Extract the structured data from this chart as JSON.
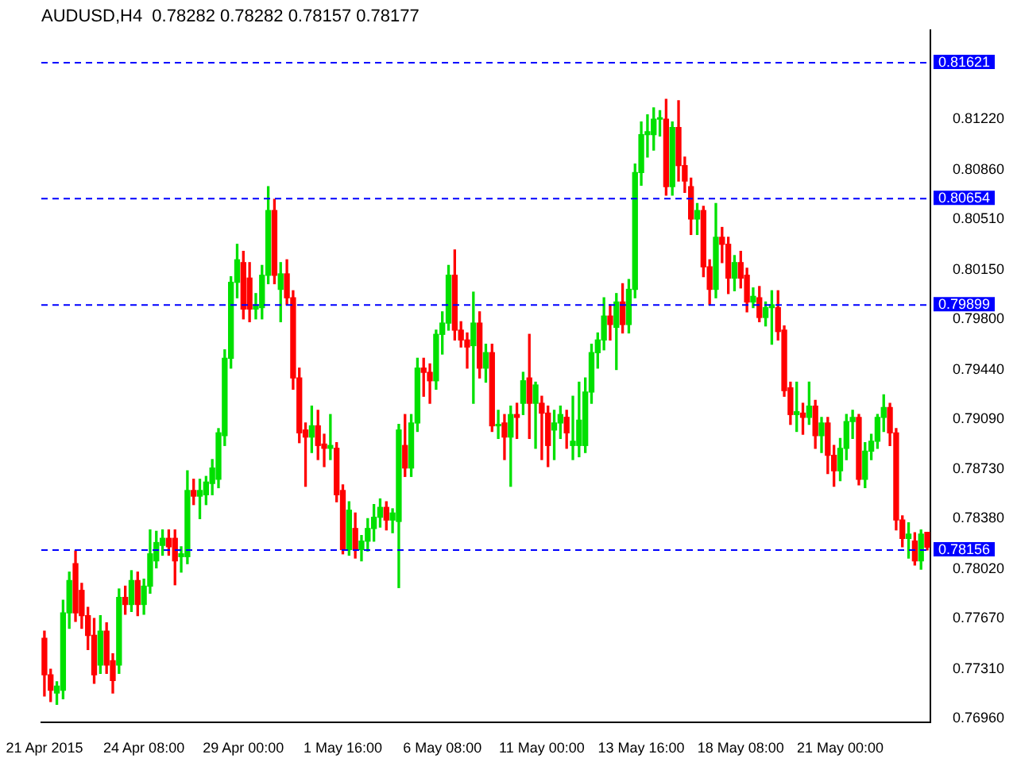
{
  "chart_data": {
    "type": "candlestick",
    "title": "AUDUSD,H4  0.78282 0.78282 0.78157 0.78177",
    "categories": [
      "21 Apr 2015",
      null,
      null,
      null,
      null,
      null,
      null,
      null,
      null,
      null,
      null,
      null,
      null,
      null,
      null,
      null,
      "24 Apr 08:00",
      null,
      null,
      null,
      null,
      null,
      null,
      null,
      null,
      null,
      null,
      null,
      null,
      null,
      null,
      null,
      "29 Apr 00:00",
      null,
      null,
      null,
      null,
      null,
      null,
      null,
      null,
      null,
      null,
      null,
      null,
      null,
      null,
      null,
      "1 May 16:00",
      null,
      null,
      null,
      null,
      null,
      null,
      null,
      null,
      null,
      null,
      null,
      null,
      null,
      null,
      null,
      "6 May 08:00",
      null,
      null,
      null,
      null,
      null,
      null,
      null,
      null,
      null,
      null,
      null,
      null,
      null,
      null,
      null,
      "11 May 00:00",
      null,
      null,
      null,
      null,
      null,
      null,
      null,
      null,
      null,
      null,
      null,
      null,
      null,
      null,
      null,
      "13 May 16:00",
      null,
      null,
      null,
      null,
      null,
      null,
      null,
      null,
      null,
      null,
      null,
      null,
      null,
      null,
      null,
      "18 May 08:00",
      null,
      null,
      null,
      null,
      null,
      null,
      null,
      null,
      null,
      null,
      null,
      null,
      null,
      null,
      null,
      "21 May 00:00",
      null,
      null,
      null,
      null,
      null,
      null,
      null,
      null,
      null,
      null,
      null,
      null,
      null,
      null
    ],
    "ohlc": [
      [
        0.7753,
        0.7758,
        0.7712,
        0.7727
      ],
      [
        0.7727,
        0.7731,
        0.7708,
        0.7716
      ],
      [
        0.7714,
        0.7722,
        0.7706,
        0.7719
      ],
      [
        0.7716,
        0.778,
        0.771,
        0.7771
      ],
      [
        0.7771,
        0.78,
        0.776,
        0.7794
      ],
      [
        0.7806,
        0.7815,
        0.7765,
        0.7771
      ],
      [
        0.7787,
        0.7792,
        0.776,
        0.7769
      ],
      [
        0.7769,
        0.7775,
        0.7745,
        0.7755
      ],
      [
        0.7755,
        0.7767,
        0.7721,
        0.7727
      ],
      [
        0.7734,
        0.7769,
        0.7728,
        0.7758
      ],
      [
        0.7758,
        0.7764,
        0.7728,
        0.7734
      ],
      [
        0.7737,
        0.7742,
        0.7714,
        0.7723
      ],
      [
        0.7734,
        0.7788,
        0.7728,
        0.7782
      ],
      [
        0.7782,
        0.779,
        0.777,
        0.7777
      ],
      [
        0.7777,
        0.7801,
        0.7772,
        0.7794
      ],
      [
        0.7794,
        0.78,
        0.7769,
        0.7777
      ],
      [
        0.7777,
        0.7795,
        0.777,
        0.779
      ],
      [
        0.779,
        0.783,
        0.7785,
        0.7813
      ],
      [
        0.7808,
        0.7829,
        0.7803,
        0.7821
      ],
      [
        0.7819,
        0.783,
        0.7812,
        0.7824
      ],
      [
        0.7824,
        0.783,
        0.7812,
        0.7818
      ],
      [
        0.7824,
        0.783,
        0.7791,
        0.7808
      ],
      [
        0.7811,
        0.7818,
        0.78,
        0.7813
      ],
      [
        0.7811,
        0.7872,
        0.7806,
        0.7858
      ],
      [
        0.7858,
        0.7866,
        0.7848,
        0.7854
      ],
      [
        0.7854,
        0.7866,
        0.7838,
        0.7858
      ],
      [
        0.7855,
        0.7868,
        0.7848,
        0.7864
      ],
      [
        0.7863,
        0.788,
        0.7855,
        0.7874
      ],
      [
        0.7866,
        0.7902,
        0.786,
        0.7899
      ],
      [
        0.7897,
        0.7958,
        0.789,
        0.7952
      ],
      [
        0.7952,
        0.801,
        0.7945,
        0.8006
      ],
      [
        0.8006,
        0.8033,
        0.7995,
        0.8022
      ],
      [
        0.802,
        0.8028,
        0.798,
        0.7987
      ],
      [
        0.8009,
        0.802,
        0.7978,
        0.7987
      ],
      [
        0.7987,
        0.7998,
        0.798,
        0.7989
      ],
      [
        0.7988,
        0.8018,
        0.798,
        0.8011
      ],
      [
        0.8011,
        0.8074,
        0.8005,
        0.8057
      ],
      [
        0.8057,
        0.8065,
        0.8005,
        0.8011
      ],
      [
        0.8001,
        0.802,
        0.7978,
        0.8012
      ],
      [
        0.8012,
        0.8022,
        0.799,
        0.7995
      ],
      [
        0.7995,
        0.8,
        0.793,
        0.7938
      ],
      [
        0.7938,
        0.7945,
        0.7892,
        0.7899
      ],
      [
        0.7901,
        0.7906,
        0.7861,
        0.7896
      ],
      [
        0.7896,
        0.7918,
        0.7885,
        0.7904
      ],
      [
        0.7904,
        0.7915,
        0.788,
        0.789
      ],
      [
        0.7891,
        0.7898,
        0.7875,
        0.7888
      ],
      [
        0.7888,
        0.7912,
        0.788,
        0.789
      ],
      [
        0.7888,
        0.7892,
        0.785,
        0.7855
      ],
      [
        0.7858,
        0.7862,
        0.7813,
        0.7816
      ],
      [
        0.7816,
        0.785,
        0.7812,
        0.7844
      ],
      [
        0.7831,
        0.7842,
        0.781,
        0.7816
      ],
      [
        0.7816,
        0.7826,
        0.7808,
        0.7822
      ],
      [
        0.7822,
        0.7838,
        0.7815,
        0.7831
      ],
      [
        0.7831,
        0.7848,
        0.7822,
        0.7839
      ],
      [
        0.7839,
        0.7852,
        0.7832,
        0.7846
      ],
      [
        0.7846,
        0.785,
        0.783,
        0.7837
      ],
      [
        0.7837,
        0.7845,
        0.7828,
        0.7842
      ],
      [
        0.7836,
        0.7905,
        0.7789,
        0.7901
      ],
      [
        0.789,
        0.7912,
        0.7868,
        0.7874
      ],
      [
        0.7874,
        0.7912,
        0.7868,
        0.7906
      ],
      [
        0.7906,
        0.7952,
        0.79,
        0.7945
      ],
      [
        0.7945,
        0.7952,
        0.7925,
        0.7942
      ],
      [
        0.7942,
        0.7948,
        0.792,
        0.7936
      ],
      [
        0.7936,
        0.7972,
        0.793,
        0.7969
      ],
      [
        0.7969,
        0.7985,
        0.7955,
        0.7977
      ],
      [
        0.7977,
        0.8018,
        0.7972,
        0.8011
      ],
      [
        0.8011,
        0.8029,
        0.7965,
        0.7972
      ],
      [
        0.7972,
        0.7978,
        0.796,
        0.7965
      ],
      [
        0.7965,
        0.797,
        0.7945,
        0.796
      ],
      [
        0.7961,
        0.7999,
        0.792,
        0.7977
      ],
      [
        0.7977,
        0.7985,
        0.7938,
        0.7945
      ],
      [
        0.7945,
        0.7962,
        0.7935,
        0.7956
      ],
      [
        0.7956,
        0.7962,
        0.79,
        0.7904
      ],
      [
        0.7904,
        0.7915,
        0.7895,
        0.7905
      ],
      [
        0.7906,
        0.7912,
        0.788,
        0.7896
      ],
      [
        0.7896,
        0.7918,
        0.7861,
        0.7912
      ],
      [
        0.7912,
        0.792,
        0.7895,
        0.791
      ],
      [
        0.792,
        0.7942,
        0.7912,
        0.7936
      ],
      [
        0.7938,
        0.7969,
        0.7895,
        0.792
      ],
      [
        0.792,
        0.7935,
        0.7888,
        0.7933
      ],
      [
        0.792,
        0.7925,
        0.788,
        0.7913
      ],
      [
        0.7913,
        0.7918,
        0.7875,
        0.789
      ],
      [
        0.7901,
        0.7915,
        0.788,
        0.7906
      ],
      [
        0.7906,
        0.7918,
        0.7895,
        0.7912
      ],
      [
        0.791,
        0.7915,
        0.7888,
        0.7899
      ],
      [
        0.789,
        0.7925,
        0.788,
        0.7893
      ],
      [
        0.789,
        0.7935,
        0.7882,
        0.7908
      ],
      [
        0.789,
        0.7938,
        0.7885,
        0.7928
      ],
      [
        0.7928,
        0.7962,
        0.792,
        0.7956
      ],
      [
        0.7956,
        0.797,
        0.7945,
        0.7965
      ],
      [
        0.7965,
        0.7995,
        0.7958,
        0.7982
      ],
      [
        0.7982,
        0.799,
        0.7965,
        0.7976
      ],
      [
        0.7974,
        0.7998,
        0.7944,
        0.7992
      ],
      [
        0.7992,
        0.8005,
        0.797,
        0.7976
      ],
      [
        0.7976,
        0.8008,
        0.797,
        0.8001
      ],
      [
        0.8001,
        0.809,
        0.7995,
        0.8084
      ],
      [
        0.8084,
        0.812,
        0.8075,
        0.8111
      ],
      [
        0.8111,
        0.8125,
        0.8095,
        0.8113
      ],
      [
        0.8111,
        0.813,
        0.81,
        0.8122
      ],
      [
        0.8122,
        0.8128,
        0.811,
        0.8123
      ],
      [
        0.8122,
        0.8136,
        0.8068,
        0.8074
      ],
      [
        0.8074,
        0.812,
        0.8068,
        0.8116
      ],
      [
        0.8116,
        0.8135,
        0.8078,
        0.8089
      ],
      [
        0.8089,
        0.8095,
        0.807,
        0.8078
      ],
      [
        0.8074,
        0.808,
        0.804,
        0.8051
      ],
      [
        0.8051,
        0.8062,
        0.804,
        0.8057
      ],
      [
        0.8057,
        0.806,
        0.801,
        0.8017
      ],
      [
        0.8017,
        0.8022,
        0.799,
        0.8001
      ],
      [
        0.8001,
        0.8062,
        0.7995,
        0.8038
      ],
      [
        0.8038,
        0.8045,
        0.802,
        0.8033
      ],
      [
        0.8033,
        0.8038,
        0.7998,
        0.8009
      ],
      [
        0.8009,
        0.8025,
        0.8,
        0.802
      ],
      [
        0.802,
        0.8028,
        0.8002,
        0.8009
      ],
      [
        0.8011,
        0.8016,
        0.7985,
        0.7992
      ],
      [
        0.7992,
        0.8002,
        0.7988,
        0.7996
      ],
      [
        0.7995,
        0.8003,
        0.7978,
        0.7981
      ],
      [
        0.7981,
        0.7992,
        0.7975,
        0.7988
      ],
      [
        0.7988,
        0.8,
        0.7962,
        0.799
      ],
      [
        0.7988,
        0.8,
        0.7965,
        0.7971
      ],
      [
        0.7972,
        0.7975,
        0.7925,
        0.7929
      ],
      [
        0.7931,
        0.7935,
        0.7905,
        0.7912
      ],
      [
        0.7912,
        0.7935,
        0.79,
        0.7914
      ],
      [
        0.7913,
        0.792,
        0.7898,
        0.791
      ],
      [
        0.791,
        0.7935,
        0.7905,
        0.7918
      ],
      [
        0.7918,
        0.7922,
        0.7888,
        0.7897
      ],
      [
        0.7897,
        0.791,
        0.7885,
        0.7906
      ],
      [
        0.7906,
        0.791,
        0.787,
        0.7883
      ],
      [
        0.7883,
        0.789,
        0.7861,
        0.7872
      ],
      [
        0.7872,
        0.7895,
        0.7865,
        0.7888
      ],
      [
        0.7888,
        0.7912,
        0.788,
        0.7907
      ],
      [
        0.7907,
        0.7915,
        0.7895,
        0.791
      ],
      [
        0.791,
        0.7912,
        0.7862,
        0.7866
      ],
      [
        0.7866,
        0.7892,
        0.786,
        0.7886
      ],
      [
        0.7886,
        0.7898,
        0.788,
        0.7893
      ],
      [
        0.7893,
        0.7912,
        0.7888,
        0.791
      ],
      [
        0.791,
        0.7926,
        0.79,
        0.7917
      ],
      [
        0.7917,
        0.792,
        0.789,
        0.7899
      ],
      [
        0.7899,
        0.7902,
        0.783,
        0.7837
      ],
      [
        0.7837,
        0.784,
        0.7818,
        0.7824
      ],
      [
        0.7824,
        0.7835,
        0.781,
        0.7827
      ],
      [
        0.7822,
        0.7828,
        0.7805,
        0.7808
      ],
      [
        0.7808,
        0.783,
        0.7802,
        0.7827
      ],
      [
        0.78282,
        0.78282,
        0.78157,
        0.78177
      ]
    ],
    "ylim": [
      0.7693,
      0.8185
    ],
    "yticks": [
      {
        "value": 0.7696,
        "label": "0.76960"
      },
      {
        "value": 0.7731,
        "label": "0.77310"
      },
      {
        "value": 0.7767,
        "label": "0.77670"
      },
      {
        "value": 0.7802,
        "label": "0.78020"
      },
      {
        "value": 0.7838,
        "label": "0.78380"
      },
      {
        "value": 0.7873,
        "label": "0.78730"
      },
      {
        "value": 0.7909,
        "label": "0.79090"
      },
      {
        "value": 0.7944,
        "label": "0.79440"
      },
      {
        "value": 0.798,
        "label": "0.79800"
      },
      {
        "value": 0.8015,
        "label": "0.80150"
      },
      {
        "value": 0.8051,
        "label": "0.80510"
      },
      {
        "value": 0.8086,
        "label": "0.80860"
      },
      {
        "value": 0.8122,
        "label": "0.81220"
      }
    ],
    "ref_lines": [
      {
        "axis": "y",
        "value": 0.81621,
        "label": "0.81621",
        "color": "#0000ff",
        "line_style": "dashed"
      },
      {
        "axis": "y",
        "value": 0.80654,
        "label": "0.80654",
        "color": "#0000ff",
        "line_style": "dashed"
      },
      {
        "axis": "y",
        "value": 0.79899,
        "label": "0.79899",
        "color": "#0000ff",
        "line_style": "dashed"
      },
      {
        "axis": "y",
        "value": 0.78156,
        "label": "0.78156",
        "color": "#0000ff",
        "line_style": "dashed"
      }
    ],
    "grid": false,
    "legend": false
  }
}
